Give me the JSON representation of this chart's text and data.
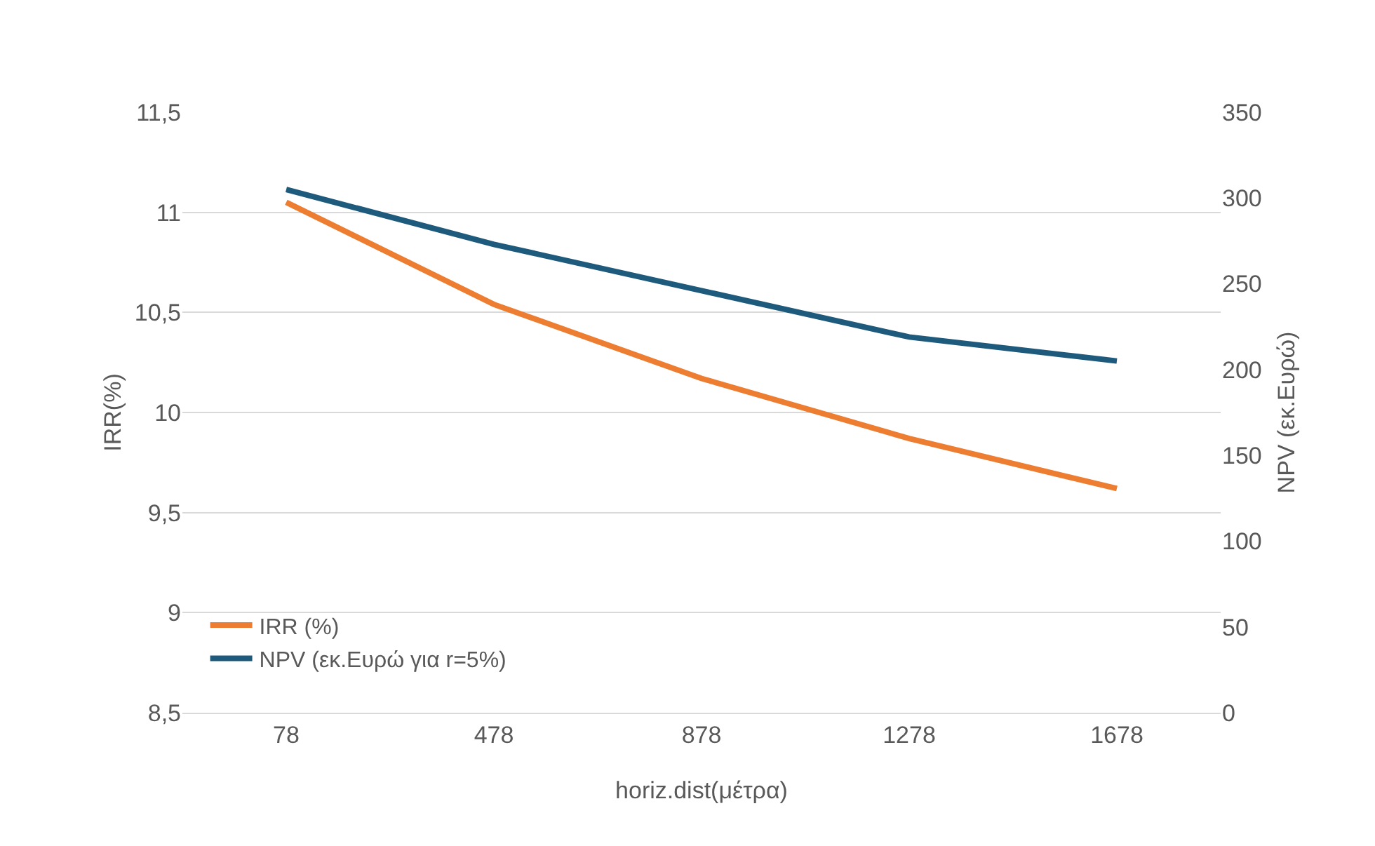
{
  "chart_data": {
    "type": "line",
    "xlabel": "horiz.dist(μέτρα)",
    "ylabel": "IRR(%)",
    "y2label": "NPV (εκ.Ευρώ)",
    "categories": [
      "78",
      "478",
      "878",
      "1278",
      "1678"
    ],
    "series": [
      {
        "name": "IRR (%)",
        "color": "#ed7d31",
        "values": [
          11.05,
          10.54,
          10.17,
          9.87,
          9.62
        ]
      },
      {
        "name": "NPV (εκ.Ευρώ για r=5%)",
        "color": "#1e5a7c",
        "axis": "y2",
        "values": [
          305,
          273,
          246,
          219,
          205
        ]
      }
    ],
    "ylim": [
      8.5,
      11.5
    ],
    "yticks": [
      {
        "value": 8.5,
        "label": "8,5"
      },
      {
        "value": 9,
        "label": "9"
      },
      {
        "value": 9.5,
        "label": "9,5"
      },
      {
        "value": 10,
        "label": "10"
      },
      {
        "value": 10.5,
        "label": "10,5"
      },
      {
        "value": 11,
        "label": "11"
      },
      {
        "value": 11.5,
        "label": "11,5"
      }
    ],
    "y2lim": [
      0,
      350
    ],
    "y2ticks": [
      0,
      50,
      100,
      150,
      200,
      250,
      300,
      350
    ],
    "grid": "y",
    "legend": "bottom left",
    "marker": "none",
    "line_style": "solid"
  }
}
